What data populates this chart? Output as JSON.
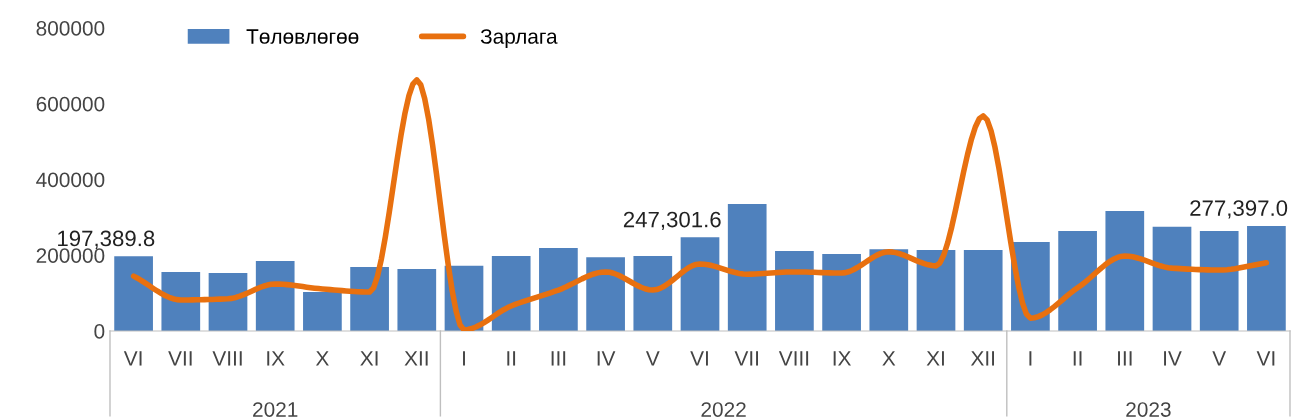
{
  "chart_data": {
    "type": "bar",
    "categories": [
      "VI",
      "VII",
      "VIII",
      "IX",
      "X",
      "XI",
      "XII",
      "I",
      "II",
      "III",
      "IV",
      "V",
      "VI",
      "VII",
      "VIII",
      "IX",
      "X",
      "XI",
      "XII",
      "I",
      "II",
      "III",
      "IV",
      "V",
      "VI"
    ],
    "series": [
      {
        "name": "Төлөвлөгөө",
        "color": "#4f81bd",
        "values": [
          197389.8,
          156000,
          153000,
          185000,
          103000,
          169000,
          164000,
          172000,
          198000,
          219000,
          195000,
          198000,
          247301.6,
          335000,
          211000,
          203000,
          216000,
          214000,
          214000,
          235000,
          264000,
          317000,
          275000,
          264000,
          277397.0
        ],
        "value_labels": [
          "197,389.8",
          null,
          null,
          null,
          null,
          null,
          null,
          null,
          null,
          null,
          null,
          null,
          "247,301.6",
          null,
          null,
          null,
          null,
          null,
          null,
          null,
          null,
          null,
          null,
          null,
          "277,397.0"
        ]
      },
      {
        "name": "Зарлага",
        "type": "line",
        "color": "#e8700f",
        "values": [
          145000,
          82000,
          85000,
          124000,
          111000,
          103000,
          663000,
          3000,
          66000,
          108000,
          156000,
          108000,
          177000,
          150000,
          156000,
          153000,
          209000,
          172000,
          568000,
          34000,
          114000,
          198000,
          166000,
          161000,
          180000
        ]
      }
    ],
    "annotations": [
      "2021",
      "2022",
      "2023"
    ],
    "ylim": [
      0,
      800000
    ],
    "yticks": [
      0,
      200000,
      400000,
      600000,
      800000
    ],
    "grid": false,
    "legend": "top left"
  }
}
